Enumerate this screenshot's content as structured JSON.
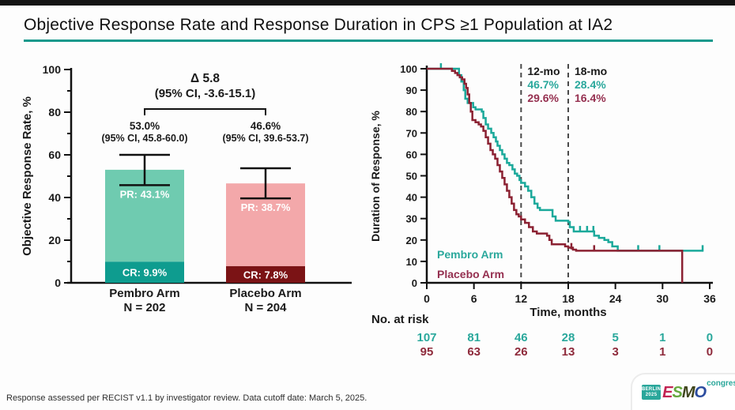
{
  "slide": {
    "title": "Objective Response Rate and Response Duration in CPS ≥1 Population at IA2",
    "footnote": "Response assessed per RECIST v1.1 by investigator review. Data cutoff date: March 5, 2025."
  },
  "logo": {
    "badge_line1": "BERLIN",
    "badge_line2": "2025",
    "letters": [
      {
        "char": "E",
        "color": "#C22453"
      },
      {
        "char": "S",
        "color": "#66A83D"
      },
      {
        "char": "M",
        "color": "#3F451C"
      },
      {
        "char": "O",
        "color": "#2B4C9F"
      }
    ],
    "suffix": "congress"
  },
  "chart_data": [
    {
      "type": "bar",
      "title": "",
      "ylabel": "Objective Response Rate, %",
      "ylim": [
        0,
        100
      ],
      "yticks_major": [
        0,
        20,
        40,
        60,
        80,
        100
      ],
      "yticks_minor": [
        10,
        30,
        50,
        70,
        90
      ],
      "delta": {
        "label": "Δ 5.8",
        "ci": "(95% CI, -3.6-15.1)"
      },
      "bars": [
        {
          "category": "Pembro Arm",
          "n_label": "N = 202",
          "orr": 53.0,
          "orr_label": "53.0%",
          "ci": [
            45.8,
            60.0
          ],
          "ci_label": "(95% CI, 45.8-60.0)",
          "pr": 43.1,
          "pr_label": "PR: 43.1%",
          "cr": 9.9,
          "cr_label": "CR: 9.9%",
          "fill": "#6FCBB0",
          "cr_fill": "#0E9C8F"
        },
        {
          "category": "Placebo Arm",
          "n_label": "N = 204",
          "orr": 46.6,
          "orr_label": "46.6%",
          "ci": [
            39.6,
            53.7
          ],
          "ci_label": "(95% CI, 39.6-53.7)",
          "pr": 38.7,
          "pr_label": "PR: 38.7%",
          "cr": 7.8,
          "cr_label": "CR: 7.8%",
          "fill": "#F3A8AA",
          "cr_fill": "#7B1315"
        }
      ]
    },
    {
      "type": "line",
      "subtype": "kaplan-meier-step",
      "ylabel": "Duration of Response, %",
      "xlabel": "Time, months",
      "xlim": [
        0,
        36
      ],
      "xticks": [
        0,
        6,
        12,
        18,
        24,
        30,
        36
      ],
      "ylim": [
        0,
        100
      ],
      "yticks": [
        0,
        10,
        20,
        30,
        40,
        50,
        60,
        70,
        80,
        90,
        100
      ],
      "milestone_lines": [
        12,
        18
      ],
      "milestones": [
        {
          "label": "12-mo",
          "values": [
            {
              "series": "Pembro Arm",
              "text": "46.7%"
            },
            {
              "series": "Placebo Arm",
              "text": "29.6%"
            }
          ]
        },
        {
          "label": "18-mo",
          "values": [
            {
              "series": "Pembro Arm",
              "text": "28.4%"
            },
            {
              "series": "Placebo Arm",
              "text": "16.4%"
            }
          ]
        }
      ],
      "series": [
        {
          "name": "Pembro Arm",
          "color": "#1BA99B",
          "text_color": "#2AA89C",
          "points": [
            [
              0,
              100
            ],
            [
              3.9,
              100
            ],
            [
              4.1,
              97
            ],
            [
              4.4,
              94
            ],
            [
              4.7,
              90
            ],
            [
              4.9,
              86
            ],
            [
              5.2,
              84
            ],
            [
              5.9,
              82
            ],
            [
              6.2,
              81
            ],
            [
              7.0,
              80
            ],
            [
              7.2,
              77
            ],
            [
              7.5,
              74
            ],
            [
              7.8,
              72
            ],
            [
              8.2,
              70
            ],
            [
              8.5,
              68
            ],
            [
              8.8,
              66
            ],
            [
              9.0,
              64
            ],
            [
              9.3,
              62
            ],
            [
              9.6,
              60
            ],
            [
              9.9,
              58
            ],
            [
              10.2,
              56
            ],
            [
              10.5,
              55
            ],
            [
              10.9,
              53
            ],
            [
              11.2,
              51
            ],
            [
              11.5,
              50
            ],
            [
              11.8,
              48
            ],
            [
              12.0,
              46.7
            ],
            [
              12.5,
              45
            ],
            [
              12.9,
              43
            ],
            [
              13.3,
              40
            ],
            [
              13.7,
              37
            ],
            [
              14.1,
              35
            ],
            [
              14.4,
              34
            ],
            [
              16.0,
              31
            ],
            [
              16.4,
              29
            ],
            [
              18.0,
              28.4
            ],
            [
              18.2,
              26
            ],
            [
              18.7,
              24
            ],
            [
              21.3,
              22
            ],
            [
              21.9,
              21
            ],
            [
              22.6,
              20
            ],
            [
              23.1,
              19
            ],
            [
              23.6,
              17
            ],
            [
              24.3,
              15
            ],
            [
              35.2,
              15
            ]
          ],
          "censors": [
            [
              1.8,
              100
            ],
            [
              19.5,
              24
            ],
            [
              20.4,
              24
            ],
            [
              21.2,
              24
            ],
            [
              26.9,
              15
            ],
            [
              29.6,
              15
            ],
            [
              35.1,
              15
            ]
          ]
        },
        {
          "name": "Placebo Arm",
          "color": "#8B2132",
          "text_color": "#953050",
          "points": [
            [
              0,
              100
            ],
            [
              2.9,
              100
            ],
            [
              3.2,
              99
            ],
            [
              3.6,
              98
            ],
            [
              3.9,
              97
            ],
            [
              4.2,
              96
            ],
            [
              4.5,
              95
            ],
            [
              4.8,
              93
            ],
            [
              5.0,
              91
            ],
            [
              5.2,
              88
            ],
            [
              5.4,
              84
            ],
            [
              5.6,
              80
            ],
            [
              5.8,
              76
            ],
            [
              6.2,
              75
            ],
            [
              6.6,
              74
            ],
            [
              6.9,
              73
            ],
            [
              7.2,
              71
            ],
            [
              7.5,
              68
            ],
            [
              7.8,
              65
            ],
            [
              8.1,
              62
            ],
            [
              8.4,
              60
            ],
            [
              8.7,
              58
            ],
            [
              9.0,
              55
            ],
            [
              9.3,
              52
            ],
            [
              9.6,
              49
            ],
            [
              9.9,
              46
            ],
            [
              10.2,
              43
            ],
            [
              10.5,
              40
            ],
            [
              10.8,
              37
            ],
            [
              11.1,
              34
            ],
            [
              11.4,
              32
            ],
            [
              11.7,
              31
            ],
            [
              12.0,
              29.6
            ],
            [
              12.5,
              28
            ],
            [
              13.0,
              26
            ],
            [
              13.5,
              24
            ],
            [
              14.0,
              23
            ],
            [
              15.3,
              22
            ],
            [
              15.6,
              20
            ],
            [
              15.9,
              18
            ],
            [
              17.6,
              17
            ],
            [
              18.0,
              16.4
            ],
            [
              18.6,
              15.5
            ],
            [
              19.0,
              15
            ],
            [
              32.5,
              15
            ],
            [
              32.5,
              0
            ]
          ],
          "censors": [
            [
              18.4,
              16
            ],
            [
              21.3,
              15
            ]
          ]
        }
      ],
      "at_risk": {
        "title": "No. at risk",
        "rows": [
          {
            "series": "Pembro Arm",
            "color": "#2AA89C",
            "values": [
              "107",
              "81",
              "46",
              "28",
              "5",
              "1",
              "0"
            ]
          },
          {
            "series": "Placebo Arm",
            "color": "#8E2A3B",
            "values": [
              "95",
              "63",
              "26",
              "13",
              "3",
              "1",
              "0"
            ]
          }
        ]
      }
    }
  ]
}
